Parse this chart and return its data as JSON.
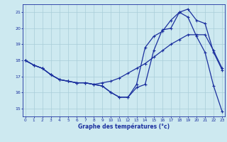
{
  "xlabel": "Graphe des températures (°c)",
  "background_color": "#cde9f0",
  "grid_color": "#a8cdd8",
  "line_color": "#1a2f9e",
  "hours": [
    0,
    1,
    2,
    3,
    4,
    5,
    6,
    7,
    8,
    9,
    10,
    11,
    12,
    13,
    14,
    15,
    16,
    17,
    18,
    19,
    20,
    21,
    22,
    23
  ],
  "series1": [
    18.0,
    17.7,
    17.5,
    17.1,
    16.8,
    16.7,
    16.6,
    16.6,
    16.5,
    16.4,
    16.0,
    15.7,
    15.7,
    16.3,
    16.5,
    18.6,
    19.9,
    20.0,
    21.0,
    20.7,
    19.5,
    18.5,
    16.4,
    14.8
  ],
  "series2": [
    18.0,
    17.7,
    17.5,
    17.1,
    16.8,
    16.7,
    16.6,
    16.6,
    16.5,
    16.4,
    16.0,
    15.7,
    15.7,
    16.5,
    18.8,
    19.5,
    19.8,
    20.5,
    21.0,
    21.2,
    20.5,
    20.3,
    18.5,
    17.4
  ],
  "series3": [
    18.0,
    17.7,
    17.5,
    17.1,
    16.8,
    16.7,
    16.6,
    16.6,
    16.5,
    16.6,
    16.7,
    16.9,
    17.2,
    17.5,
    17.8,
    18.2,
    18.6,
    19.0,
    19.3,
    19.6,
    19.6,
    19.6,
    18.6,
    17.5
  ],
  "ylim": [
    14.5,
    21.5
  ],
  "yticks": [
    15,
    16,
    17,
    18,
    19,
    20,
    21
  ],
  "xticks": [
    0,
    1,
    2,
    3,
    4,
    5,
    6,
    7,
    8,
    9,
    10,
    11,
    12,
    13,
    14,
    15,
    16,
    17,
    18,
    19,
    20,
    21,
    22,
    23
  ]
}
